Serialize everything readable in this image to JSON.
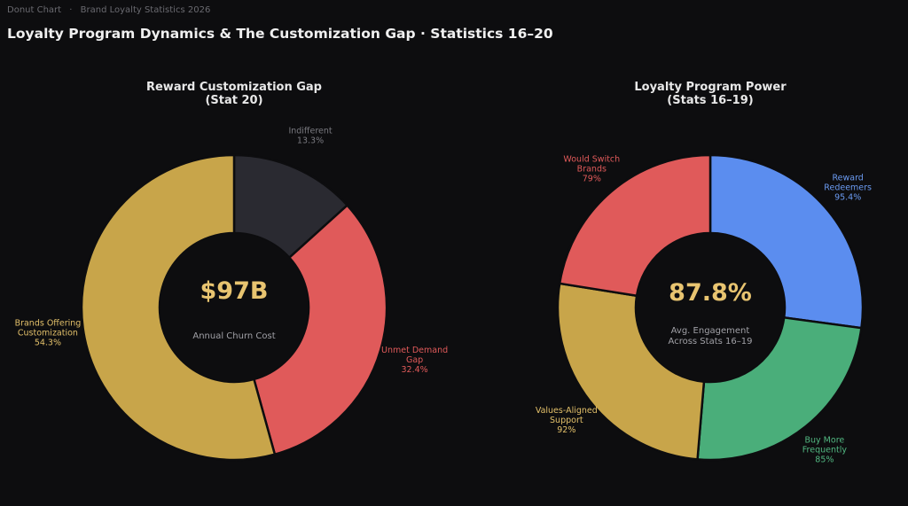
{
  "header": {
    "breadcrumb": [
      "Donut Chart",
      "Brand Loyalty Statistics 2026"
    ],
    "breadcrumb_separator": "·",
    "title": "Loyalty Program Dynamics & The Customization Gap  ·  Statistics 16–20"
  },
  "chart_data": [
    {
      "type": "pie",
      "title": [
        "Reward Customization Gap",
        "(Stat 20)"
      ],
      "center_value": "$97B",
      "center_caption": [
        "Annual Churn Cost"
      ],
      "slices": [
        {
          "label": [
            "Indifferent"
          ],
          "value": 13.3,
          "display": "13.3%",
          "color": "#2a2a31",
          "label_color": "#7a7a80"
        },
        {
          "label": [
            "Unmet Demand",
            "Gap"
          ],
          "value": 32.4,
          "display": "32.4%",
          "color": "#e05a5a",
          "label_color": "#e05a5a"
        },
        {
          "label": [
            "Brands Offering",
            "Customization"
          ],
          "value": 54.3,
          "display": "54.3%",
          "color": "#c8a54a",
          "label_color": "#e3c06a"
        }
      ]
    },
    {
      "type": "pie",
      "title": [
        "Loyalty Program Power",
        "(Stats 16–19)"
      ],
      "center_value": "87.8%",
      "center_caption": [
        "Avg. Engagement",
        "Across Stats 16–19"
      ],
      "slices": [
        {
          "label": [
            "Reward",
            "Redeemers"
          ],
          "value": 95.4,
          "display": "95.4%",
          "color": "#5b8def",
          "label_color": "#6b9bf2"
        },
        {
          "label": [
            "Buy More",
            "Frequently"
          ],
          "value": 85,
          "display": "85%",
          "color": "#4aae7a",
          "label_color": "#52b882"
        },
        {
          "label": [
            "Values-Aligned",
            "Support"
          ],
          "value": 92,
          "display": "92%",
          "color": "#c8a54a",
          "label_color": "#e3c06a"
        },
        {
          "label": [
            "Would Switch",
            "Brands"
          ],
          "value": 79,
          "display": "79%",
          "color": "#e05a5a",
          "label_color": "#e05a5a"
        }
      ]
    }
  ]
}
